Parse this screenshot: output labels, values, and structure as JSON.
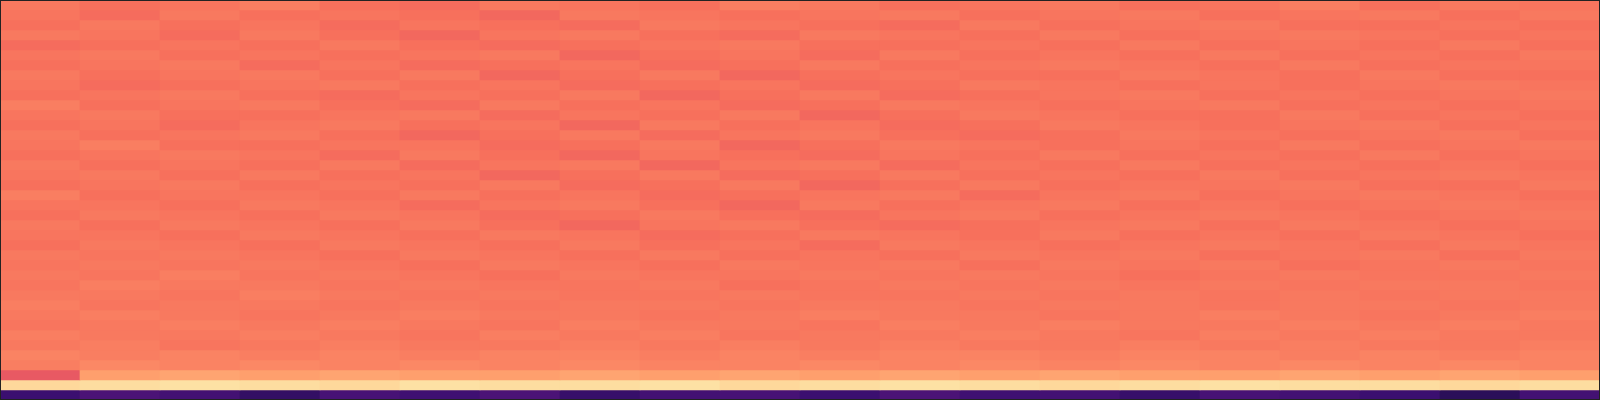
{
  "chart_data": {
    "type": "heatmap",
    "xlim": [
      0,
      20
    ],
    "ylim": [
      0,
      40
    ],
    "zlim": [
      0,
      1
    ],
    "tick_labels": false,
    "grid": false,
    "cells": [
      [
        0.72,
        0.7,
        0.71,
        0.73,
        0.7,
        0.69,
        0.72,
        0.71,
        0.7,
        0.73,
        0.72,
        0.7,
        0.71,
        0.72,
        0.7,
        0.71,
        0.73,
        0.7,
        0.72,
        0.71
      ],
      [
        0.71,
        0.69,
        0.72,
        0.7,
        0.71,
        0.7,
        0.68,
        0.72,
        0.71,
        0.7,
        0.71,
        0.72,
        0.7,
        0.71,
        0.72,
        0.7,
        0.71,
        0.72,
        0.7,
        0.72
      ],
      [
        0.7,
        0.72,
        0.7,
        0.71,
        0.69,
        0.71,
        0.7,
        0.69,
        0.72,
        0.71,
        0.7,
        0.69,
        0.72,
        0.7,
        0.71,
        0.72,
        0.7,
        0.7,
        0.71,
        0.7
      ],
      [
        0.72,
        0.71,
        0.69,
        0.72,
        0.7,
        0.68,
        0.71,
        0.72,
        0.7,
        0.69,
        0.72,
        0.71,
        0.7,
        0.72,
        0.7,
        0.71,
        0.72,
        0.71,
        0.7,
        0.71
      ],
      [
        0.69,
        0.7,
        0.71,
        0.7,
        0.72,
        0.7,
        0.69,
        0.7,
        0.71,
        0.72,
        0.7,
        0.7,
        0.71,
        0.7,
        0.72,
        0.7,
        0.71,
        0.7,
        0.72,
        0.7
      ],
      [
        0.71,
        0.72,
        0.7,
        0.71,
        0.7,
        0.71,
        0.72,
        0.68,
        0.7,
        0.71,
        0.69,
        0.72,
        0.7,
        0.71,
        0.7,
        0.72,
        0.7,
        0.71,
        0.7,
        0.72
      ],
      [
        0.7,
        0.71,
        0.72,
        0.69,
        0.71,
        0.69,
        0.7,
        0.71,
        0.69,
        0.7,
        0.72,
        0.7,
        0.71,
        0.72,
        0.71,
        0.7,
        0.72,
        0.7,
        0.71,
        0.71
      ],
      [
        0.72,
        0.7,
        0.71,
        0.72,
        0.7,
        0.72,
        0.68,
        0.7,
        0.72,
        0.68,
        0.7,
        0.71,
        0.7,
        0.7,
        0.72,
        0.71,
        0.7,
        0.72,
        0.7,
        0.7
      ],
      [
        0.71,
        0.69,
        0.7,
        0.71,
        0.72,
        0.7,
        0.71,
        0.69,
        0.7,
        0.71,
        0.69,
        0.7,
        0.72,
        0.71,
        0.7,
        0.71,
        0.7,
        0.71,
        0.72,
        0.71
      ],
      [
        0.7,
        0.71,
        0.72,
        0.7,
        0.69,
        0.71,
        0.7,
        0.72,
        0.68,
        0.7,
        0.72,
        0.69,
        0.7,
        0.71,
        0.72,
        0.7,
        0.71,
        0.7,
        0.71,
        0.72
      ],
      [
        0.73,
        0.7,
        0.71,
        0.72,
        0.7,
        0.69,
        0.72,
        0.7,
        0.71,
        0.69,
        0.7,
        0.72,
        0.71,
        0.7,
        0.71,
        0.72,
        0.7,
        0.71,
        0.7,
        0.71
      ],
      [
        0.71,
        0.72,
        0.7,
        0.7,
        0.71,
        0.72,
        0.69,
        0.71,
        0.7,
        0.72,
        0.68,
        0.7,
        0.72,
        0.71,
        0.7,
        0.7,
        0.72,
        0.7,
        0.71,
        0.7
      ],
      [
        0.7,
        0.71,
        0.69,
        0.71,
        0.72,
        0.7,
        0.71,
        0.68,
        0.72,
        0.7,
        0.71,
        0.69,
        0.7,
        0.72,
        0.71,
        0.7,
        0.71,
        0.72,
        0.7,
        0.71
      ],
      [
        0.72,
        0.7,
        0.71,
        0.72,
        0.7,
        0.68,
        0.7,
        0.72,
        0.69,
        0.71,
        0.72,
        0.7,
        0.69,
        0.7,
        0.72,
        0.71,
        0.7,
        0.71,
        0.72,
        0.7
      ],
      [
        0.71,
        0.73,
        0.7,
        0.7,
        0.71,
        0.71,
        0.69,
        0.7,
        0.72,
        0.68,
        0.7,
        0.72,
        0.71,
        0.7,
        0.71,
        0.7,
        0.72,
        0.7,
        0.71,
        0.72
      ],
      [
        0.7,
        0.71,
        0.72,
        0.71,
        0.69,
        0.72,
        0.7,
        0.68,
        0.71,
        0.7,
        0.69,
        0.71,
        0.7,
        0.72,
        0.7,
        0.71,
        0.7,
        0.72,
        0.7,
        0.71
      ],
      [
        0.72,
        0.7,
        0.71,
        0.7,
        0.72,
        0.69,
        0.71,
        0.72,
        0.68,
        0.71,
        0.72,
        0.69,
        0.71,
        0.7,
        0.72,
        0.7,
        0.71,
        0.7,
        0.71,
        0.7
      ],
      [
        0.71,
        0.72,
        0.7,
        0.72,
        0.7,
        0.71,
        0.68,
        0.7,
        0.72,
        0.69,
        0.7,
        0.72,
        0.7,
        0.71,
        0.7,
        0.72,
        0.7,
        0.71,
        0.72,
        0.71
      ],
      [
        0.7,
        0.71,
        0.72,
        0.7,
        0.71,
        0.7,
        0.72,
        0.69,
        0.7,
        0.72,
        0.68,
        0.7,
        0.72,
        0.7,
        0.71,
        0.71,
        0.72,
        0.7,
        0.7,
        0.72
      ],
      [
        0.73,
        0.7,
        0.71,
        0.71,
        0.7,
        0.72,
        0.7,
        0.71,
        0.69,
        0.7,
        0.71,
        0.72,
        0.69,
        0.71,
        0.72,
        0.7,
        0.71,
        0.72,
        0.71,
        0.7
      ],
      [
        0.71,
        0.71,
        0.7,
        0.72,
        0.71,
        0.69,
        0.71,
        0.72,
        0.7,
        0.68,
        0.72,
        0.7,
        0.71,
        0.72,
        0.7,
        0.71,
        0.7,
        0.71,
        0.72,
        0.71
      ],
      [
        0.7,
        0.72,
        0.71,
        0.7,
        0.72,
        0.71,
        0.69,
        0.7,
        0.72,
        0.7,
        0.69,
        0.71,
        0.72,
        0.7,
        0.71,
        0.72,
        0.71,
        0.7,
        0.71,
        0.72
      ],
      [
        0.72,
        0.7,
        0.72,
        0.71,
        0.7,
        0.72,
        0.7,
        0.68,
        0.71,
        0.72,
        0.7,
        0.69,
        0.7,
        0.71,
        0.72,
        0.7,
        0.72,
        0.71,
        0.7,
        0.71
      ],
      [
        0.71,
        0.71,
        0.7,
        0.72,
        0.71,
        0.7,
        0.72,
        0.71,
        0.69,
        0.7,
        0.72,
        0.71,
        0.7,
        0.72,
        0.7,
        0.71,
        0.7,
        0.72,
        0.71,
        0.7
      ],
      [
        0.7,
        0.72,
        0.71,
        0.7,
        0.72,
        0.71,
        0.7,
        0.72,
        0.7,
        0.71,
        0.69,
        0.72,
        0.71,
        0.7,
        0.71,
        0.72,
        0.71,
        0.7,
        0.72,
        0.71
      ],
      [
        0.72,
        0.71,
        0.72,
        0.71,
        0.7,
        0.72,
        0.71,
        0.7,
        0.72,
        0.7,
        0.71,
        0.7,
        0.72,
        0.71,
        0.72,
        0.7,
        0.71,
        0.72,
        0.7,
        0.72
      ],
      [
        0.71,
        0.72,
        0.71,
        0.72,
        0.71,
        0.7,
        0.72,
        0.71,
        0.7,
        0.72,
        0.71,
        0.72,
        0.7,
        0.72,
        0.71,
        0.72,
        0.7,
        0.71,
        0.72,
        0.71
      ],
      [
        0.72,
        0.71,
        0.73,
        0.71,
        0.72,
        0.71,
        0.7,
        0.72,
        0.71,
        0.71,
        0.72,
        0.71,
        0.72,
        0.71,
        0.7,
        0.71,
        0.72,
        0.71,
        0.71,
        0.72
      ],
      [
        0.71,
        0.73,
        0.72,
        0.72,
        0.71,
        0.72,
        0.71,
        0.71,
        0.72,
        0.7,
        0.71,
        0.72,
        0.71,
        0.72,
        0.71,
        0.72,
        0.71,
        0.72,
        0.72,
        0.71
      ],
      [
        0.72,
        0.72,
        0.71,
        0.73,
        0.72,
        0.71,
        0.72,
        0.71,
        0.71,
        0.72,
        0.71,
        0.71,
        0.72,
        0.71,
        0.72,
        0.71,
        0.72,
        0.71,
        0.72,
        0.72
      ],
      [
        0.73,
        0.71,
        0.72,
        0.72,
        0.71,
        0.72,
        0.71,
        0.72,
        0.72,
        0.71,
        0.72,
        0.72,
        0.71,
        0.72,
        0.72,
        0.71,
        0.72,
        0.72,
        0.71,
        0.72
      ],
      [
        0.72,
        0.73,
        0.72,
        0.71,
        0.72,
        0.73,
        0.72,
        0.72,
        0.71,
        0.72,
        0.73,
        0.72,
        0.72,
        0.71,
        0.72,
        0.73,
        0.72,
        0.71,
        0.72,
        0.73
      ],
      [
        0.71,
        0.72,
        0.73,
        0.72,
        0.73,
        0.72,
        0.71,
        0.73,
        0.72,
        0.72,
        0.71,
        0.73,
        0.72,
        0.73,
        0.72,
        0.72,
        0.73,
        0.72,
        0.73,
        0.72
      ],
      [
        0.73,
        0.72,
        0.72,
        0.73,
        0.72,
        0.71,
        0.73,
        0.72,
        0.73,
        0.71,
        0.72,
        0.72,
        0.73,
        0.72,
        0.71,
        0.73,
        0.72,
        0.73,
        0.72,
        0.72
      ],
      [
        0.72,
        0.73,
        0.71,
        0.72,
        0.73,
        0.72,
        0.72,
        0.73,
        0.72,
        0.73,
        0.72,
        0.73,
        0.72,
        0.72,
        0.73,
        0.72,
        0.73,
        0.72,
        0.72,
        0.73
      ],
      [
        0.74,
        0.73,
        0.74,
        0.73,
        0.74,
        0.73,
        0.74,
        0.74,
        0.73,
        0.74,
        0.73,
        0.74,
        0.74,
        0.73,
        0.74,
        0.74,
        0.73,
        0.74,
        0.73,
        0.74
      ],
      [
        0.73,
        0.75,
        0.74,
        0.75,
        0.74,
        0.75,
        0.74,
        0.75,
        0.74,
        0.74,
        0.75,
        0.74,
        0.75,
        0.74,
        0.75,
        0.74,
        0.75,
        0.74,
        0.75,
        0.74
      ],
      [
        0.64,
        0.8,
        0.81,
        0.8,
        0.81,
        0.8,
        0.8,
        0.81,
        0.8,
        0.81,
        0.8,
        0.81,
        0.8,
        0.81,
        0.8,
        0.8,
        0.81,
        0.8,
        0.81,
        0.8
      ],
      [
        0.92,
        0.93,
        0.94,
        0.93,
        0.92,
        0.94,
        0.93,
        0.93,
        0.94,
        0.92,
        0.93,
        0.94,
        0.93,
        0.92,
        0.93,
        0.94,
        0.93,
        0.93,
        0.92,
        0.93
      ],
      [
        0.2,
        0.24,
        0.22,
        0.18,
        0.23,
        0.21,
        0.24,
        0.19,
        0.22,
        0.23,
        0.2,
        0.24,
        0.21,
        0.22,
        0.19,
        0.23,
        0.22,
        0.2,
        0.16,
        0.22
      ]
    ]
  }
}
